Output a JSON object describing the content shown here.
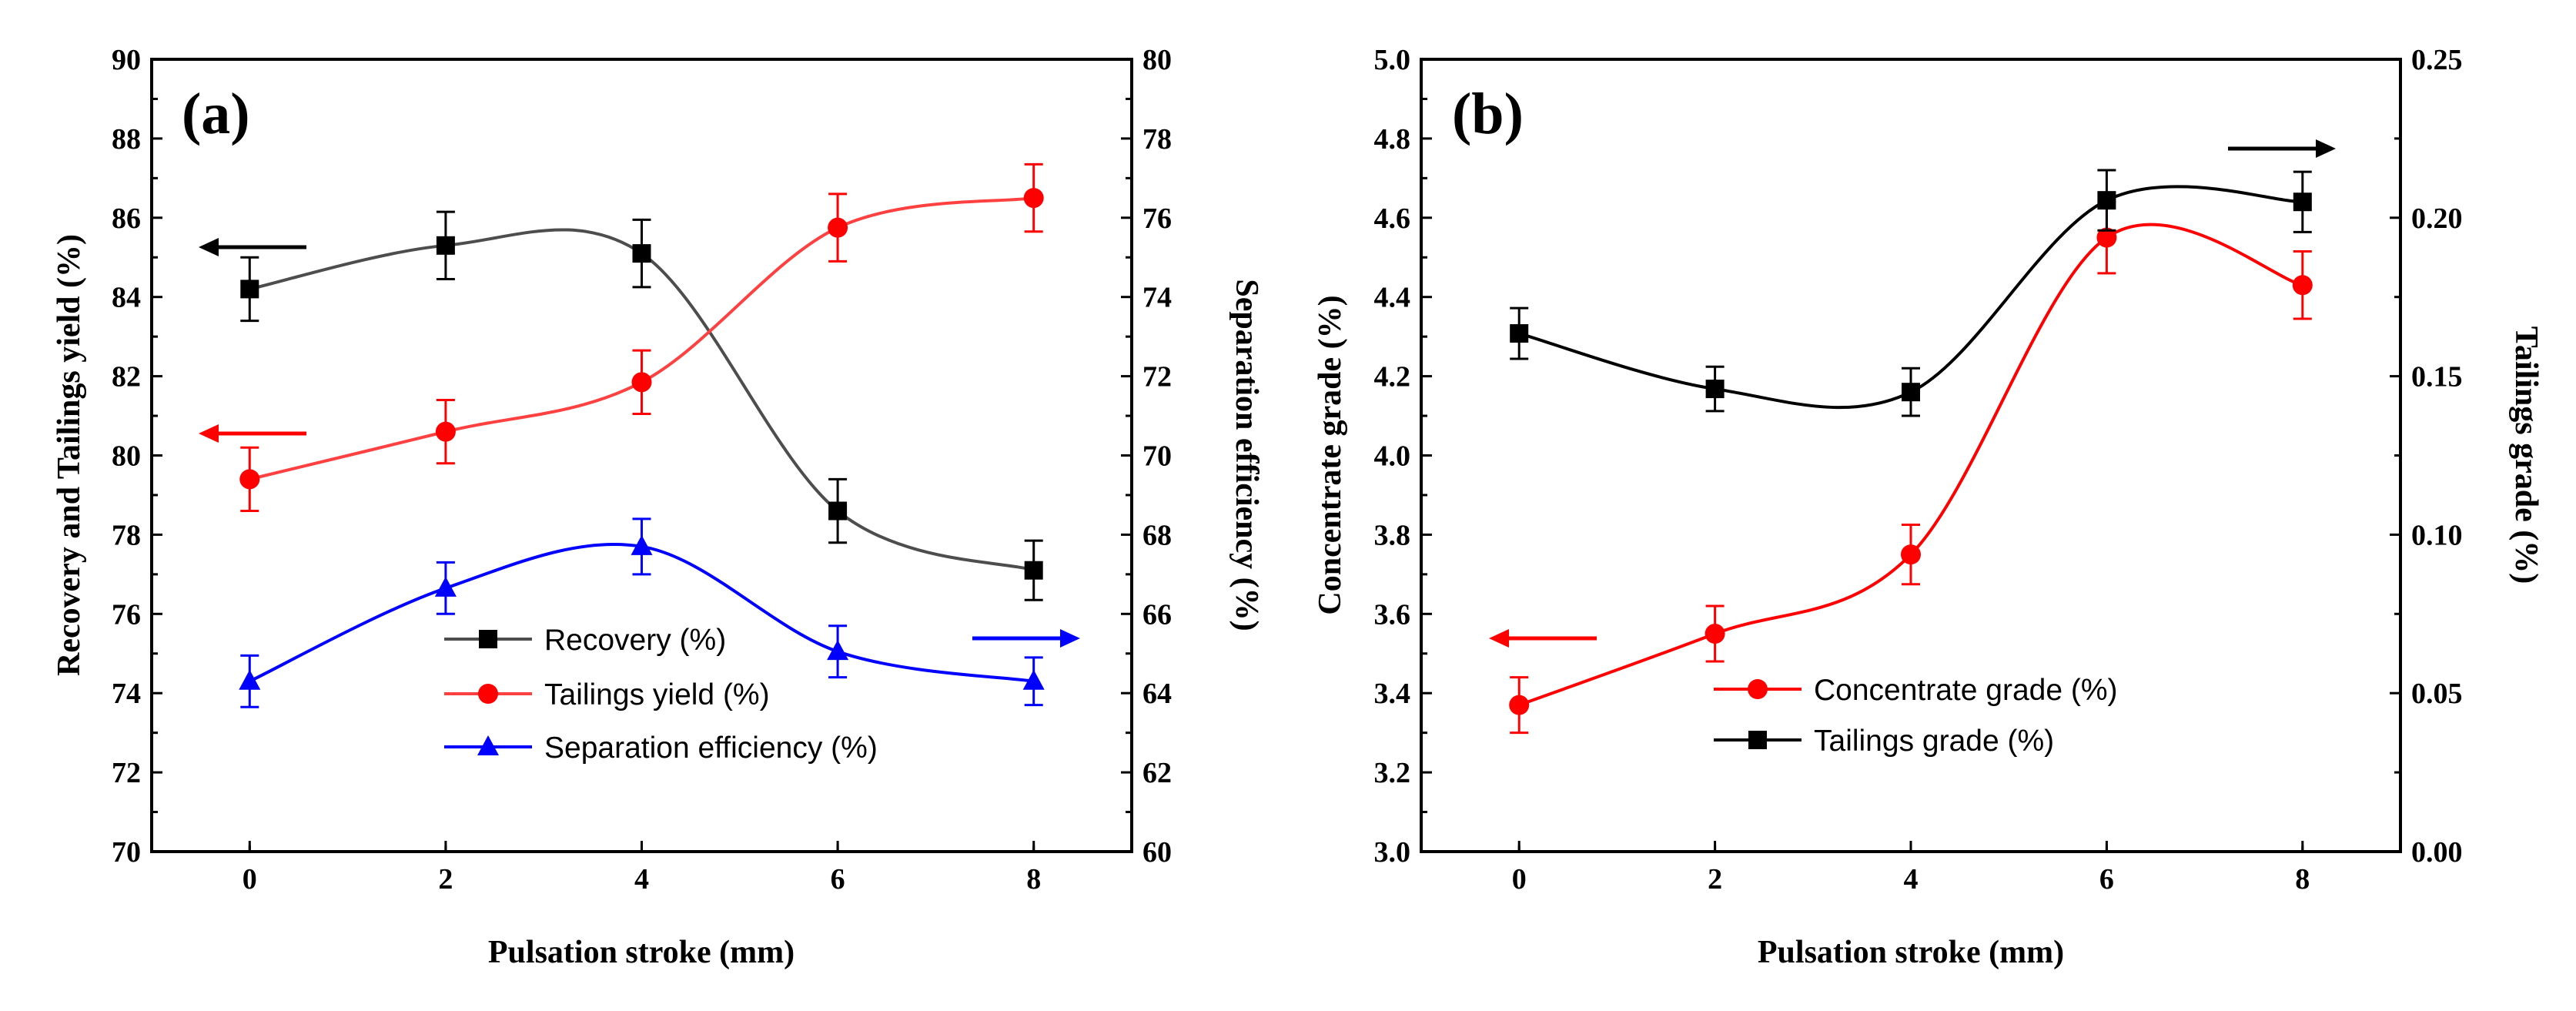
{
  "chart_data": [
    {
      "type": "line",
      "panel_label": "(a)",
      "xlabel": "Pulsation stroke (mm)",
      "ylabel_left": "Recovery and Tailings yield (%)",
      "ylabel_right": "Separation efficiency (%)",
      "xlim": [
        -1,
        9
      ],
      "xticks": [
        0,
        2,
        4,
        6,
        8
      ],
      "ylim_left": [
        70,
        90
      ],
      "yticks_left": [
        70,
        72,
        74,
        76,
        78,
        80,
        82,
        84,
        86,
        88,
        90
      ],
      "ylim_right": [
        60,
        80
      ],
      "yticks_right": [
        60,
        62,
        64,
        66,
        68,
        70,
        72,
        74,
        76,
        78,
        80
      ],
      "legend_position": "center",
      "series": [
        {
          "name": "Recovery (%)",
          "axis": "left",
          "color": "#000000",
          "line_color": "#4d4d4d",
          "marker": "square",
          "x": [
            0,
            2,
            4,
            6,
            8
          ],
          "y": [
            84.2,
            85.3,
            85.1,
            78.6,
            77.1
          ],
          "err": [
            0.8,
            0.85,
            0.85,
            0.8,
            0.75
          ],
          "arrow_direction": "left"
        },
        {
          "name": "Tailings yield (%)",
          "axis": "left",
          "color": "#ff0000",
          "line_color": "#ff4040",
          "marker": "circle",
          "x": [
            0,
            2,
            4,
            6,
            8
          ],
          "y": [
            79.4,
            80.6,
            81.85,
            85.75,
            86.5
          ],
          "err": [
            0.8,
            0.8,
            0.8,
            0.85,
            0.85
          ],
          "arrow_direction": "left"
        },
        {
          "name": "Separation efficiency (%)",
          "axis": "right",
          "color": "#0000ff",
          "line_color": "#0000ff",
          "marker": "triangle",
          "x": [
            0,
            2,
            4,
            6,
            8
          ],
          "y": [
            64.3,
            66.65,
            67.7,
            65.05,
            64.3
          ],
          "err": [
            0.65,
            0.65,
            0.7,
            0.65,
            0.6
          ],
          "arrow_direction": "right"
        }
      ]
    },
    {
      "type": "line",
      "panel_label": "(b)",
      "xlabel": "Pulsation stroke (mm)",
      "ylabel_left": "Concentrate grade (%)",
      "ylabel_right": "Tailings grade (%)",
      "xlim": [
        -1,
        9
      ],
      "xticks": [
        0,
        2,
        4,
        6,
        8
      ],
      "ylim_left": [
        3.0,
        5.0
      ],
      "yticks_left": [
        "3.0",
        "3.2",
        "3.4",
        "3.6",
        "3.8",
        "4.0",
        "4.2",
        "4.4",
        "4.6",
        "4.8",
        "5.0"
      ],
      "ylim_right": [
        0.0,
        0.25
      ],
      "yticks_right": [
        "0.00",
        "0.05",
        "0.10",
        "0.15",
        "0.20",
        "0.25"
      ],
      "legend_position": "bottom-center",
      "series": [
        {
          "name": "Concentrate grade (%)",
          "axis": "left",
          "color": "#ff0000",
          "line_color": "#ff0000",
          "marker": "circle",
          "x": [
            0,
            2,
            4,
            6,
            8
          ],
          "y": [
            3.37,
            3.55,
            3.75,
            4.55,
            4.43
          ],
          "err": [
            0.07,
            0.07,
            0.075,
            0.09,
            0.085
          ],
          "arrow_direction": "left"
        },
        {
          "name": "Tailings grade (%)",
          "axis": "right",
          "color": "#000000",
          "line_color": "#000000",
          "marker": "square",
          "x": [
            0,
            2,
            4,
            6,
            8
          ],
          "y": [
            0.1635,
            0.146,
            0.145,
            0.2055,
            0.205
          ],
          "err": [
            0.008,
            0.007,
            0.0075,
            0.0095,
            0.0095
          ],
          "arrow_direction": "right"
        }
      ]
    }
  ]
}
